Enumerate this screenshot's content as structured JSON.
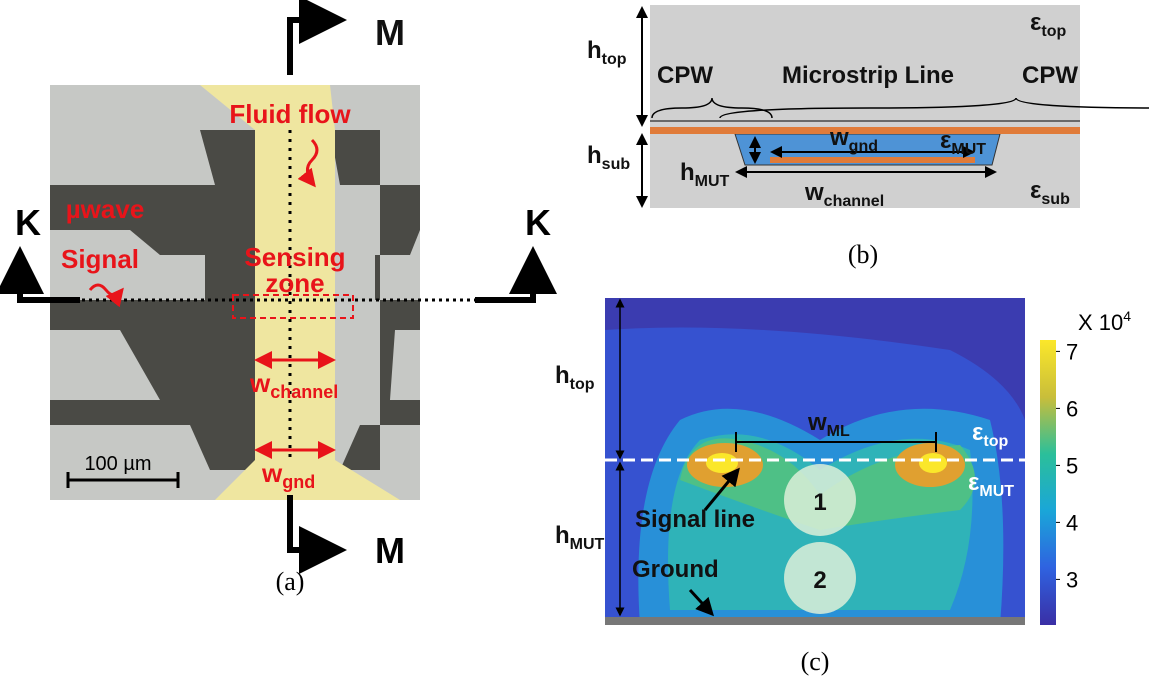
{
  "panel_a": {
    "caption": "(a)",
    "arrow_top": "M",
    "arrow_bottom": "M",
    "arrow_left": "K",
    "arrow_right": "K",
    "fluid_flow": "Fluid flow",
    "signal_1": "µwave",
    "signal_2": "Signal",
    "sensing_1": "Sensing",
    "sensing_2": "zone",
    "w_channel": {
      "base": "w",
      "sub": "channel"
    },
    "w_gnd": {
      "base": "w",
      "sub": "gnd"
    },
    "scale_bar": "100 µm"
  },
  "panel_b": {
    "caption": "(b)",
    "h_top": {
      "base": "h",
      "sub": "top"
    },
    "eps_top": {
      "base": "ε",
      "sub": "top"
    },
    "cpw_left": "CPW",
    "microstrip": "Microstrip Line",
    "cpw_right": "CPW",
    "w_gnd": {
      "base": "w",
      "sub": "gnd"
    },
    "eps_mut": {
      "base": "ε",
      "sub": "MUT"
    },
    "h_sub": {
      "base": "h",
      "sub": "sub"
    },
    "h_mut": {
      "base": "h",
      "sub": "MUT"
    },
    "w_channel": {
      "base": "w",
      "sub": "channel"
    },
    "eps_sub": {
      "base": "ε",
      "sub": "sub"
    }
  },
  "panel_c": {
    "caption": "(c)",
    "h_top": {
      "base": "h",
      "sub": "top"
    },
    "h_mut": {
      "base": "h",
      "sub": "MUT"
    },
    "w_ml": {
      "base": "w",
      "sub": "ML"
    },
    "eps_top": {
      "base": "ε",
      "sub": "top"
    },
    "eps_mut": {
      "base": "ε",
      "sub": "MUT"
    },
    "signal_line": "Signal line",
    "ground": "Ground",
    "circle_1": "1",
    "circle_2": "2",
    "colorbar": {
      "label_base": "X 10",
      "label_exp": "4",
      "lim": [
        2.2,
        7.2
      ],
      "ticks": [
        3,
        4,
        5,
        6,
        7
      ]
    }
  }
}
